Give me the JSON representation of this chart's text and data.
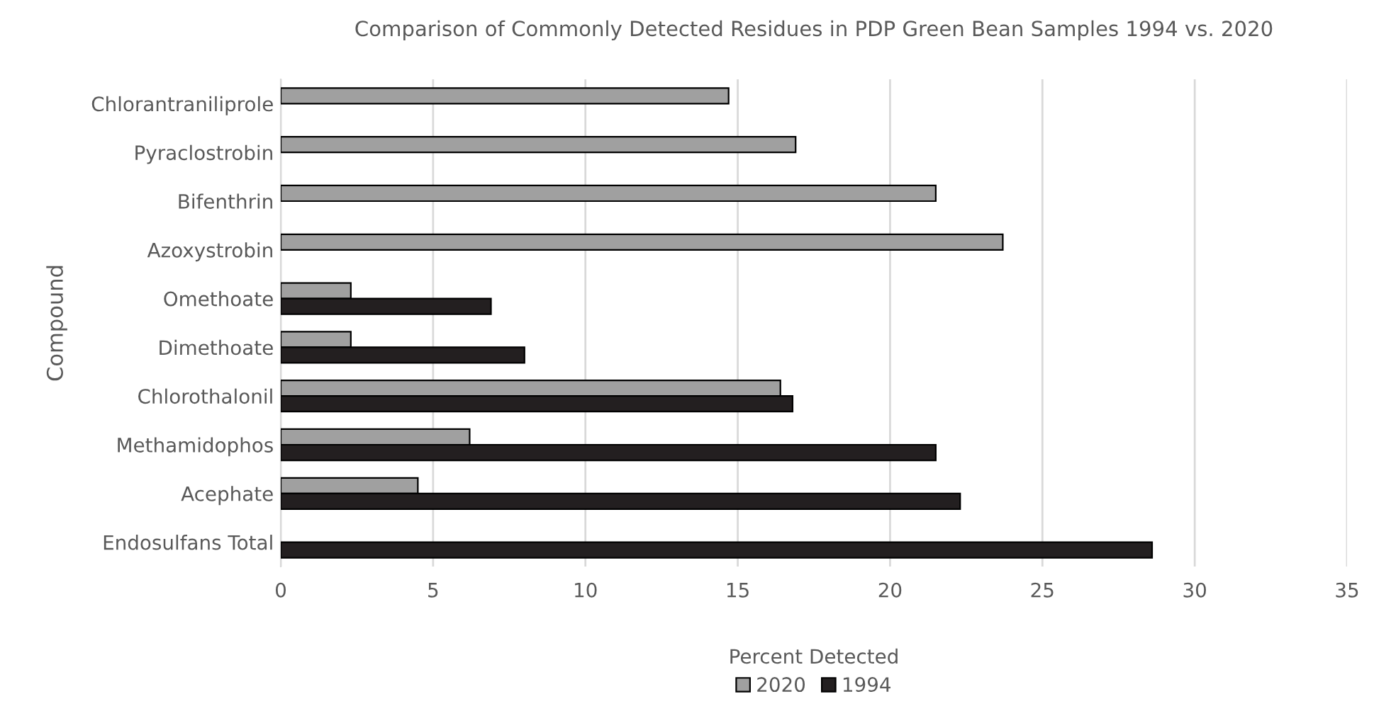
{
  "chart_data": {
    "type": "bar",
    "orientation": "horizontal",
    "title": "Comparison of Commonly Detected Residues in PDP Green Bean Samples 1994 vs. 2020",
    "xlabel": "Percent Detected",
    "ylabel": "Compound",
    "categories": [
      "Chlorantraniliprole",
      "Pyraclostrobin",
      "Bifenthrin",
      "Azoxystrobin",
      "Omethoate",
      "Dimethoate",
      "Chlorothalonil",
      "Methamidophos",
      "Acephate",
      "Endosulfans Total"
    ],
    "series": [
      {
        "name": "2020",
        "color": "#a0a0a0",
        "values": [
          14.7,
          16.9,
          21.5,
          23.7,
          2.3,
          2.3,
          16.4,
          6.2,
          4.5,
          null
        ]
      },
      {
        "name": "1994",
        "color": "#231f20",
        "values": [
          null,
          null,
          null,
          null,
          6.9,
          8.0,
          16.8,
          21.5,
          22.3,
          28.6
        ]
      }
    ],
    "xlim": [
      0,
      35
    ],
    "xticks": [
      0,
      5,
      10,
      15,
      20,
      25,
      30,
      35
    ],
    "grid": "x",
    "legend": "bottom"
  }
}
